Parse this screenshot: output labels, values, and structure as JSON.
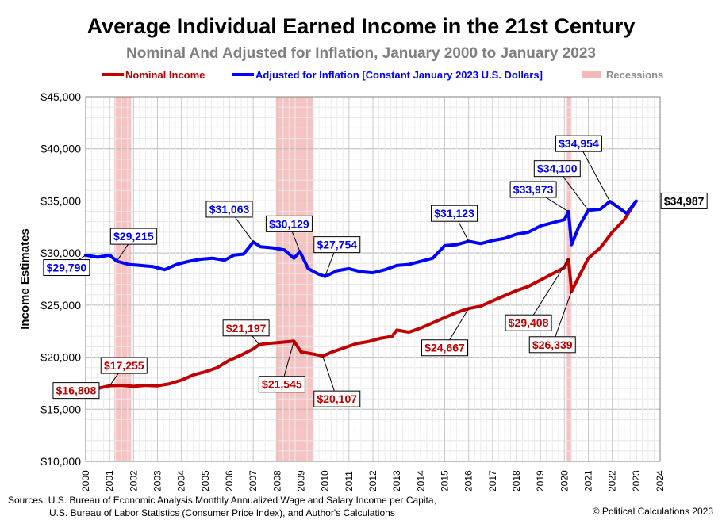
{
  "chart_data": {
    "type": "line",
    "title": "Average Individual Earned Income in the 21st Century",
    "subtitle": "Nominal And Adjusted for Inflation, January 2000 to January 2023",
    "ylabel": "Income Estimates",
    "xlabel": "",
    "xlim": [
      2000,
      2024
    ],
    "ylim": [
      10000,
      45000
    ],
    "x_ticks": [
      "2000",
      "2001",
      "2002",
      "2003",
      "2004",
      "2005",
      "2006",
      "2007",
      "2008",
      "2009",
      "2010",
      "2011",
      "2012",
      "2013",
      "2014",
      "2015",
      "2016",
      "2017",
      "2018",
      "2019",
      "2020",
      "2021",
      "2022",
      "2023",
      "2024"
    ],
    "y_ticks": [
      {
        "value": 10000,
        "label": "$10,000"
      },
      {
        "value": 15000,
        "label": "$15,000"
      },
      {
        "value": 20000,
        "label": "$20,000"
      },
      {
        "value": 25000,
        "label": "$25,000"
      },
      {
        "value": 30000,
        "label": "$30,000"
      },
      {
        "value": 35000,
        "label": "$35,000"
      },
      {
        "value": 40000,
        "label": "$40,000"
      },
      {
        "value": 45000,
        "label": "$45,000"
      }
    ],
    "grid": true,
    "legend": {
      "placement": "top",
      "items": [
        {
          "label": "Nominal Income",
          "color": "#c00000",
          "kind": "line"
        },
        {
          "label": "Adjusted for Inflation [Constant January 2023 U.S. Dollars]",
          "color": "#0000ff",
          "kind": "line"
        },
        {
          "label": "Recessions",
          "color": "#f4b8b8",
          "kind": "band"
        }
      ]
    },
    "recessions": [
      {
        "start": 2001.2,
        "end": 2001.9
      },
      {
        "start": 2007.95,
        "end": 2009.5
      },
      {
        "start": 2020.1,
        "end": 2020.3
      }
    ],
    "series": [
      {
        "name": "Nominal Income",
        "color": "#c00000",
        "points": [
          [
            2000.0,
            16808
          ],
          [
            2000.5,
            17000
          ],
          [
            2001.0,
            17255
          ],
          [
            2001.5,
            17300
          ],
          [
            2002.0,
            17200
          ],
          [
            2002.5,
            17300
          ],
          [
            2003.0,
            17250
          ],
          [
            2003.5,
            17450
          ],
          [
            2004.0,
            17800
          ],
          [
            2004.5,
            18300
          ],
          [
            2005.0,
            18600
          ],
          [
            2005.5,
            19000
          ],
          [
            2006.0,
            19700
          ],
          [
            2006.5,
            20200
          ],
          [
            2007.0,
            20800
          ],
          [
            2007.25,
            21197
          ],
          [
            2007.5,
            21300
          ],
          [
            2008.0,
            21400
          ],
          [
            2008.7,
            21545
          ],
          [
            2009.0,
            20500
          ],
          [
            2009.5,
            20300
          ],
          [
            2009.9,
            20107
          ],
          [
            2010.3,
            20500
          ],
          [
            2010.8,
            20900
          ],
          [
            2011.3,
            21300
          ],
          [
            2011.8,
            21500
          ],
          [
            2012.3,
            21800
          ],
          [
            2012.8,
            22000
          ],
          [
            2013.0,
            22600
          ],
          [
            2013.5,
            22400
          ],
          [
            2014.0,
            22800
          ],
          [
            2014.5,
            23300
          ],
          [
            2015.0,
            23800
          ],
          [
            2015.5,
            24300
          ],
          [
            2016.0,
            24667
          ],
          [
            2016.5,
            24900
          ],
          [
            2017.0,
            25400
          ],
          [
            2017.5,
            25900
          ],
          [
            2018.0,
            26400
          ],
          [
            2018.5,
            26800
          ],
          [
            2019.0,
            27400
          ],
          [
            2019.5,
            28000
          ],
          [
            2020.0,
            28600
          ],
          [
            2020.17,
            29408
          ],
          [
            2020.3,
            26339
          ],
          [
            2020.6,
            27700
          ],
          [
            2021.0,
            29500
          ],
          [
            2021.5,
            30500
          ],
          [
            2022.0,
            32000
          ],
          [
            2022.5,
            33200
          ],
          [
            2023.0,
            34987
          ]
        ]
      },
      {
        "name": "Adjusted for Inflation [Constant January 2023 U.S. Dollars]",
        "color": "#0000ff",
        "points": [
          [
            2000.0,
            29790
          ],
          [
            2000.5,
            29600
          ],
          [
            2001.0,
            29800
          ],
          [
            2001.3,
            29215
          ],
          [
            2001.8,
            28900
          ],
          [
            2002.3,
            28800
          ],
          [
            2002.8,
            28700
          ],
          [
            2003.3,
            28400
          ],
          [
            2003.8,
            28900
          ],
          [
            2004.3,
            29200
          ],
          [
            2004.8,
            29400
          ],
          [
            2005.3,
            29500
          ],
          [
            2005.8,
            29300
          ],
          [
            2006.2,
            29800
          ],
          [
            2006.6,
            29900
          ],
          [
            2007.0,
            31063
          ],
          [
            2007.3,
            30600
          ],
          [
            2007.8,
            30500
          ],
          [
            2008.3,
            30300
          ],
          [
            2008.7,
            29500
          ],
          [
            2008.95,
            30129
          ],
          [
            2009.3,
            28500
          ],
          [
            2009.7,
            28000
          ],
          [
            2010.0,
            27754
          ],
          [
            2010.5,
            28300
          ],
          [
            2011.0,
            28500
          ],
          [
            2011.5,
            28200
          ],
          [
            2012.0,
            28100
          ],
          [
            2012.5,
            28400
          ],
          [
            2013.0,
            28800
          ],
          [
            2013.5,
            28900
          ],
          [
            2014.0,
            29200
          ],
          [
            2014.5,
            29500
          ],
          [
            2015.0,
            30700
          ],
          [
            2015.5,
            30800
          ],
          [
            2016.0,
            31123
          ],
          [
            2016.5,
            30900
          ],
          [
            2017.0,
            31200
          ],
          [
            2017.5,
            31400
          ],
          [
            2018.0,
            31800
          ],
          [
            2018.5,
            32000
          ],
          [
            2019.0,
            32600
          ],
          [
            2019.5,
            32900
          ],
          [
            2020.0,
            33200
          ],
          [
            2020.17,
            33973
          ],
          [
            2020.3,
            30800
          ],
          [
            2020.6,
            32500
          ],
          [
            2021.0,
            34100
          ],
          [
            2021.5,
            34200
          ],
          [
            2021.9,
            34954
          ],
          [
            2022.3,
            34300
          ],
          [
            2022.6,
            33800
          ],
          [
            2023.0,
            34987
          ]
        ]
      }
    ],
    "annotations": [
      {
        "series": 0,
        "text": "$16,808",
        "x": 2000.0,
        "y": 16808,
        "lx": 1999.6,
        "ly": 16800
      },
      {
        "series": 0,
        "text": "$17,255",
        "x": 2001.0,
        "y": 17255,
        "lx": 2001.6,
        "ly": 19200
      },
      {
        "series": 0,
        "text": "$21,197",
        "x": 2007.25,
        "y": 21197,
        "lx": 2006.7,
        "ly": 22800
      },
      {
        "series": 0,
        "text": "$21,545",
        "x": 2008.7,
        "y": 21545,
        "lx": 2008.2,
        "ly": 17400
      },
      {
        "series": 0,
        "text": "$20,107",
        "x": 2009.9,
        "y": 20107,
        "lx": 2010.5,
        "ly": 16000
      },
      {
        "series": 0,
        "text": "$24,667",
        "x": 2016.0,
        "y": 24667,
        "lx": 2015.0,
        "ly": 20900
      },
      {
        "series": 0,
        "text": "$29,408",
        "x": 2020.17,
        "y": 29408,
        "lx": 2018.5,
        "ly": 23300
      },
      {
        "series": 0,
        "text": "$26,339",
        "x": 2020.3,
        "y": 26339,
        "lx": 2019.5,
        "ly": 21200
      },
      {
        "series": 1,
        "text": "$29,790",
        "x": 2000.0,
        "y": 29790,
        "lx": 1999.2,
        "ly": 28600
      },
      {
        "series": 1,
        "text": "$29,215",
        "x": 2001.3,
        "y": 29215,
        "lx": 2002.0,
        "ly": 31600
      },
      {
        "series": 1,
        "text": "$31,063",
        "x": 2007.0,
        "y": 31063,
        "lx": 2006.0,
        "ly": 34200
      },
      {
        "series": 1,
        "text": "$30,129",
        "x": 2008.95,
        "y": 30129,
        "lx": 2008.5,
        "ly": 32800
      },
      {
        "series": 1,
        "text": "$27,754",
        "x": 2010.0,
        "y": 27754,
        "lx": 2010.5,
        "ly": 30800
      },
      {
        "series": 1,
        "text": "$31,123",
        "x": 2016.0,
        "y": 31123,
        "lx": 2015.4,
        "ly": 33800
      },
      {
        "series": 1,
        "text": "$33,973",
        "x": 2020.17,
        "y": 33973,
        "lx": 2018.7,
        "ly": 36100
      },
      {
        "series": 1,
        "text": "$34,100",
        "x": 2021.0,
        "y": 34100,
        "lx": 2019.7,
        "ly": 38100
      },
      {
        "series": 1,
        "text": "$34,954",
        "x": 2021.9,
        "y": 34954,
        "lx": 2020.6,
        "ly": 40500
      },
      {
        "series": 2,
        "text": "$34,987",
        "x": 2023.0,
        "y": 34987,
        "lx": 2025.0,
        "ly": 35000
      }
    ]
  },
  "footer": {
    "sources_line1": "Sources: U.S. Bureau of Economic Analysis Monthly Annualized Wage and Salary Income per Capita,",
    "sources_line2": "U.S. Bureau of Labor Statistics (Consumer  Price Index), and Author's Calculations",
    "copyright": "© Political Calculations 2023"
  }
}
